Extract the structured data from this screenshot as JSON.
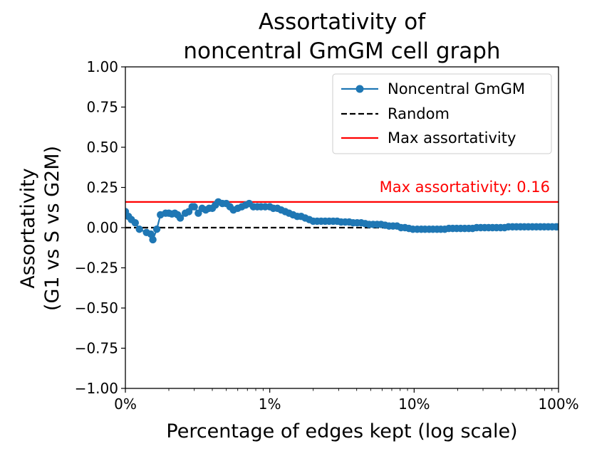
{
  "chart_data": {
    "type": "line",
    "title_lines": [
      "Assortativity of",
      "noncentral GmGM cell graph"
    ],
    "xlabel": "Percentage of edges kept (log scale)",
    "ylabel_lines": [
      "Assortativity",
      "(G1 vs S vs G2M)"
    ],
    "ylim": [
      -1.0,
      1.0
    ],
    "yticks": [
      -1.0,
      -0.75,
      -0.5,
      -0.25,
      0.0,
      0.25,
      0.5,
      0.75,
      1.0
    ],
    "ytick_labels": [
      "−1.00",
      "−0.75",
      "−0.50",
      "−0.25",
      "0.00",
      "0.25",
      "0.50",
      "0.75",
      "1.00"
    ],
    "xscale": "log",
    "xlim_percent": [
      0.1,
      100
    ],
    "xticks_percent": [
      0.1,
      1,
      10,
      100
    ],
    "xtick_labels": [
      "0%",
      "1%",
      "10%",
      "100%"
    ],
    "colors": {
      "series": "#1f77b4",
      "random": "#000000",
      "max": "#ff0000"
    },
    "series": [
      {
        "name": "Noncentral GmGM",
        "x_percent": [
          0.1,
          0.105,
          0.11,
          0.117,
          0.125,
          0.14,
          0.15,
          0.155,
          0.165,
          0.175,
          0.19,
          0.2,
          0.21,
          0.22,
          0.23,
          0.24,
          0.26,
          0.275,
          0.29,
          0.3,
          0.32,
          0.34,
          0.36,
          0.38,
          0.4,
          0.42,
          0.44,
          0.47,
          0.5,
          0.53,
          0.56,
          0.6,
          0.64,
          0.68,
          0.72,
          0.77,
          0.82,
          0.87,
          0.93,
          1.0,
          1.06,
          1.13,
          1.2,
          1.28,
          1.36,
          1.45,
          1.55,
          1.65,
          1.76,
          1.88,
          2.0,
          2.13,
          2.27,
          2.42,
          2.58,
          2.75,
          2.93,
          3.12,
          3.33,
          3.55,
          3.78,
          4.03,
          4.3,
          4.58,
          4.88,
          5.2,
          5.54,
          5.9,
          6.29,
          6.7,
          7.14,
          7.61,
          8.11,
          8.64,
          9.2,
          9.8,
          10.5,
          11.2,
          11.9,
          12.7,
          13.5,
          14.4,
          15.3,
          16.3,
          17.4,
          18.5,
          19.7,
          21.0,
          22.4,
          23.9,
          25.4,
          27.1,
          28.9,
          30.8,
          32.8,
          34.9,
          37.2,
          39.7,
          42.3,
          45.0,
          48.0,
          51.1,
          54.5,
          58.0,
          61.8,
          65.9,
          70.2,
          74.8,
          79.7,
          84.9,
          90.4,
          96.3,
          100.0
        ],
        "y": [
          0.1,
          0.07,
          0.05,
          0.03,
          -0.01,
          -0.03,
          -0.04,
          -0.075,
          -0.01,
          0.08,
          0.09,
          0.09,
          0.085,
          0.09,
          0.08,
          0.06,
          0.09,
          0.1,
          0.13,
          0.13,
          0.09,
          0.12,
          0.11,
          0.12,
          0.12,
          0.14,
          0.16,
          0.15,
          0.15,
          0.13,
          0.11,
          0.12,
          0.13,
          0.14,
          0.15,
          0.13,
          0.13,
          0.13,
          0.13,
          0.13,
          0.12,
          0.12,
          0.11,
          0.1,
          0.09,
          0.08,
          0.07,
          0.07,
          0.06,
          0.05,
          0.04,
          0.04,
          0.04,
          0.04,
          0.04,
          0.04,
          0.04,
          0.035,
          0.035,
          0.035,
          0.03,
          0.03,
          0.03,
          0.025,
          0.02,
          0.02,
          0.02,
          0.02,
          0.015,
          0.01,
          0.01,
          0.01,
          0.0,
          0.0,
          -0.005,
          -0.01,
          -0.01,
          -0.01,
          -0.01,
          -0.01,
          -0.01,
          -0.01,
          -0.01,
          -0.01,
          -0.005,
          -0.005,
          -0.005,
          -0.005,
          -0.005,
          -0.005,
          -0.005,
          0.0,
          0.0,
          0.0,
          0.0,
          0.0,
          0.0,
          0.0,
          0.0,
          0.005,
          0.005,
          0.005,
          0.005,
          0.005,
          0.005,
          0.005,
          0.005,
          0.005,
          0.005,
          0.005,
          0.005,
          0.005,
          0.005
        ]
      }
    ],
    "random_line": {
      "name": "Random",
      "y": 0.0
    },
    "max_line": {
      "name": "Max assortativity",
      "y": 0.16
    },
    "annotation": "Max assortativity: 0.16",
    "legend": {
      "placement": "top-right",
      "entries": [
        "Noncentral GmGM",
        "Random",
        "Max assortativity"
      ]
    }
  }
}
